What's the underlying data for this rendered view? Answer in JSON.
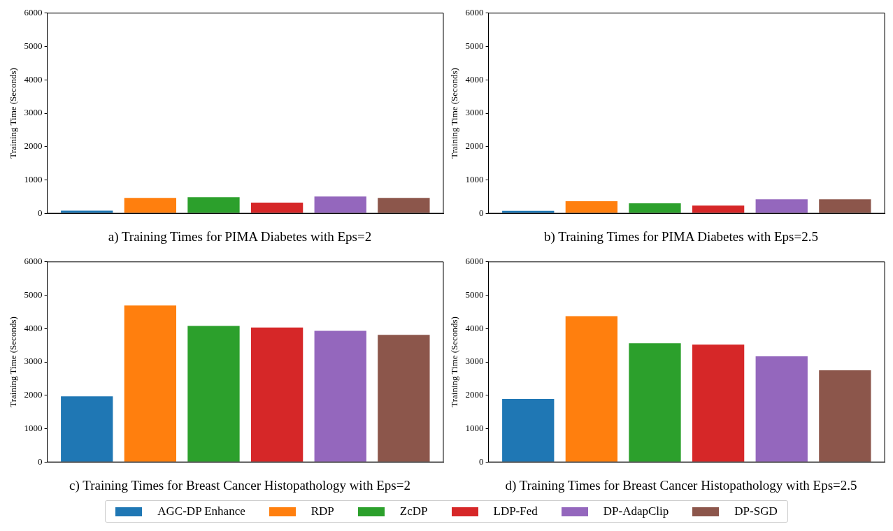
{
  "chart_data": [
    {
      "type": "bar",
      "title": "a) Training Times for PIMA Diabetes with Eps=2",
      "ylabel": "Training Time (Seconds)",
      "categories": [
        null
      ],
      "ylim": [
        0,
        6000
      ],
      "yticks": [
        0,
        1000,
        2000,
        3000,
        4000,
        5000,
        6000
      ],
      "grid": false,
      "legend": "bottom",
      "tick_labels": "y",
      "series": [
        {
          "name": "AGC-DP Enhance",
          "color": "#1f77b4",
          "values": [
            80
          ]
        },
        {
          "name": "RDP",
          "color": "#ff7f0e",
          "values": [
            460
          ]
        },
        {
          "name": "ZcDP",
          "color": "#2ca02c",
          "values": [
            480
          ]
        },
        {
          "name": "LDP-Fed",
          "color": "#d62728",
          "values": [
            320
          ]
        },
        {
          "name": "DP-AdapClip",
          "color": "#9467bd",
          "values": [
            500
          ]
        },
        {
          "name": "DP-SGD",
          "color": "#8c564b",
          "values": [
            460
          ]
        }
      ]
    },
    {
      "type": "bar",
      "title": "b) Training Times for PIMA Diabetes with Eps=2.5",
      "ylabel": "Training Time (Seconds)",
      "categories": [
        null
      ],
      "ylim": [
        0,
        6000
      ],
      "yticks": [
        0,
        1000,
        2000,
        3000,
        4000,
        5000,
        6000
      ],
      "grid": false,
      "tick_labels": "y",
      "series": [
        {
          "color": "#1f77b4",
          "values": [
            70
          ]
        },
        {
          "color": "#ff7f0e",
          "values": [
            360
          ]
        },
        {
          "color": "#2ca02c",
          "values": [
            300
          ]
        },
        {
          "color": "#d62728",
          "values": [
            230
          ]
        },
        {
          "color": "#9467bd",
          "values": [
            420
          ]
        },
        {
          "color": "#8c564b",
          "values": [
            420
          ]
        }
      ]
    },
    {
      "type": "bar",
      "title": "c) Training Times for Breast Cancer Histopathology with Eps=2",
      "ylabel": "Training Time (Seconds)",
      "categories": [
        null
      ],
      "ylim": [
        0,
        6000
      ],
      "yticks": [
        0,
        1000,
        2000,
        3000,
        4000,
        5000,
        6000
      ],
      "grid": false,
      "tick_labels": "y",
      "series": [
        {
          "color": "#1f77b4",
          "values": [
            1970
          ]
        },
        {
          "color": "#ff7f0e",
          "values": [
            4690
          ]
        },
        {
          "color": "#2ca02c",
          "values": [
            4080
          ]
        },
        {
          "color": "#d62728",
          "values": [
            4030
          ]
        },
        {
          "color": "#9467bd",
          "values": [
            3930
          ]
        },
        {
          "color": "#8c564b",
          "values": [
            3810
          ]
        }
      ]
    },
    {
      "type": "bar",
      "title": "d) Training Times for Breast Cancer Histopathology with Eps=2.5",
      "ylabel": "Training Time (Seconds)",
      "categories": [
        null
      ],
      "ylim": [
        0,
        6000
      ],
      "yticks": [
        0,
        1000,
        2000,
        3000,
        4000,
        5000,
        6000
      ],
      "grid": false,
      "tick_labels": "y",
      "series": [
        {
          "color": "#1f77b4",
          "values": [
            1890
          ]
        },
        {
          "color": "#ff7f0e",
          "values": [
            4370
          ]
        },
        {
          "color": "#2ca02c",
          "values": [
            3560
          ]
        },
        {
          "color": "#d62728",
          "values": [
            3520
          ]
        },
        {
          "color": "#9467bd",
          "values": [
            3170
          ]
        },
        {
          "color": "#8c564b",
          "values": [
            2750
          ]
        }
      ]
    }
  ]
}
